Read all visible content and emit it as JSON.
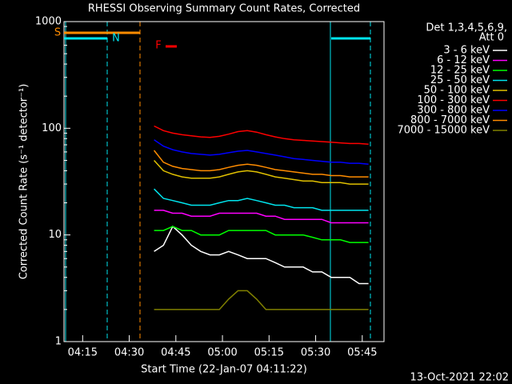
{
  "chart_data": {
    "type": "line",
    "title": "RHESSI Observing Summary Count Rates, Corrected",
    "x_label": "Start Time (22-Jan-07 04:11:22)",
    "y_label": "Corrected Count Rate (s⁻¹ detector⁻¹)",
    "legend_header": [
      "Det 1,3,4,5,6,9,",
      "Att 0"
    ],
    "footer": "13-Oct-2021 22:02",
    "flags": [
      {
        "label": "S",
        "color": "#ff8c00"
      },
      {
        "label": "N",
        "color": "#00e5ee"
      },
      {
        "label": "F",
        "color": "#ff0000"
      }
    ],
    "log_y": true,
    "xlim": [
      "04:09",
      "05:52"
    ],
    "xticks": [
      "04:15",
      "04:30",
      "04:45",
      "05:00",
      "05:15",
      "05:30",
      "05:45"
    ],
    "ylim": [
      1,
      1000
    ],
    "yticks": [
      1,
      10,
      100,
      1000
    ],
    "x": [
      "04:38",
      "04:41",
      "04:44",
      "04:47",
      "04:50",
      "04:53",
      "04:56",
      "04:59",
      "05:02",
      "05:05",
      "05:08",
      "05:11",
      "05:14",
      "05:17",
      "05:20",
      "05:23",
      "05:26",
      "05:29",
      "05:32",
      "05:35",
      "05:38",
      "05:41",
      "05:44",
      "05:47"
    ],
    "series": [
      {
        "name": "3 - 6 keV",
        "color": "#ffffff",
        "values": [
          7,
          8,
          12,
          10,
          8,
          7,
          6.5,
          6.5,
          7,
          6.5,
          6,
          6,
          6,
          5.5,
          5,
          5,
          5,
          4.5,
          4.5,
          4,
          4,
          4,
          3.5,
          3.5
        ]
      },
      {
        "name": "6 - 12 keV",
        "color": "#ff00ff",
        "values": [
          17,
          17,
          16,
          16,
          15,
          15,
          15,
          16,
          16,
          16,
          16,
          16,
          15,
          15,
          14,
          14,
          14,
          14,
          14,
          13,
          13,
          13,
          13,
          13
        ]
      },
      {
        "name": "12 - 25 keV",
        "color": "#00ff00",
        "values": [
          11,
          11,
          12,
          11,
          11,
          10,
          10,
          10,
          11,
          11,
          11,
          11,
          11,
          10,
          10,
          10,
          10,
          9.5,
          9,
          9,
          9,
          8.5,
          8.5,
          8.5
        ]
      },
      {
        "name": "25 - 50 keV",
        "color": "#00e5ee",
        "values": [
          27,
          22,
          21,
          20,
          19,
          19,
          19,
          20,
          21,
          21,
          22,
          21,
          20,
          19,
          19,
          18,
          18,
          18,
          17,
          17,
          17,
          17,
          17,
          17
        ]
      },
      {
        "name": "50 - 100 keV",
        "color": "#e0c000",
        "values": [
          50,
          40,
          37,
          35,
          34,
          34,
          34,
          35,
          37,
          39,
          40,
          39,
          37,
          35,
          34,
          33,
          32,
          32,
          31,
          31,
          31,
          30,
          30,
          30
        ]
      },
      {
        "name": "100 - 300 keV",
        "color": "#ff0000",
        "values": [
          105,
          95,
          90,
          87,
          85,
          83,
          82,
          84,
          88,
          93,
          95,
          92,
          87,
          83,
          80,
          78,
          77,
          76,
          75,
          74,
          73,
          72,
          72,
          71
        ]
      },
      {
        "name": "300 - 800 keV",
        "color": "#0000ff",
        "values": [
          78,
          68,
          63,
          60,
          58,
          57,
          56,
          57,
          59,
          61,
          62,
          60,
          58,
          56,
          54,
          52,
          51,
          50,
          49,
          48,
          48,
          47,
          47,
          46
        ]
      },
      {
        "name": "800 - 7000 keV",
        "color": "#ff8c00",
        "values": [
          62,
          48,
          44,
          42,
          41,
          40,
          40,
          41,
          43,
          45,
          46,
          45,
          43,
          41,
          40,
          39,
          38,
          37,
          37,
          36,
          36,
          35,
          35,
          35
        ]
      },
      {
        "name": "7000 - 15000 keV",
        "color": "#808000",
        "values": [
          2,
          2,
          2,
          2,
          2,
          2,
          2,
          2,
          2.5,
          3,
          3,
          2.5,
          2,
          2,
          2,
          2,
          2,
          2,
          2,
          2,
          2,
          2,
          2,
          2
        ]
      }
    ]
  }
}
